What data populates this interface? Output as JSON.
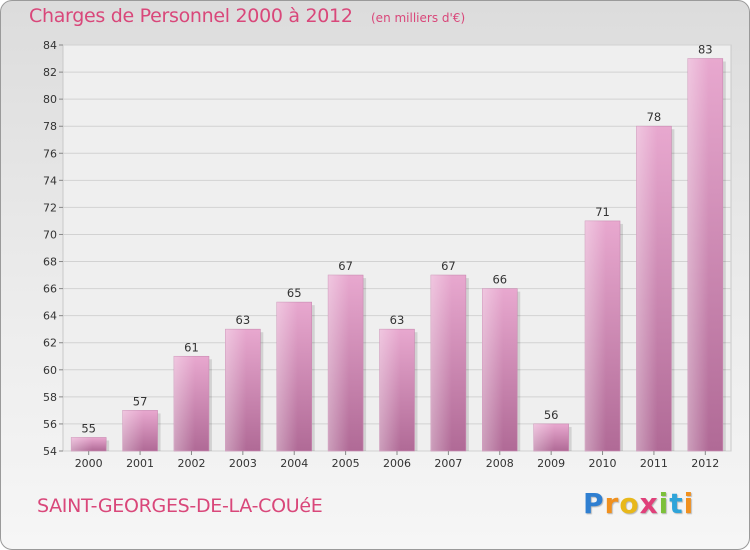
{
  "header": {
    "title": "Charges de Personnel 2000 à 2012",
    "subtitle": "(en milliers d'€)"
  },
  "footer": {
    "commune": "SAINT-GEORGES-DE-LA-COUéE",
    "logo_letters": [
      "P",
      "r",
      "o",
      "x",
      "i",
      "t",
      "i"
    ]
  },
  "colors": {
    "title": "#d9477a",
    "bar_top": "#e8a8cf",
    "bar_bottom": "#b06a96"
  },
  "chart_data": {
    "type": "bar",
    "title": "Charges de Personnel 2000 à 2012",
    "subtitle": "(en milliers d'€)",
    "xlabel": "",
    "ylabel": "",
    "categories": [
      "2000",
      "2001",
      "2002",
      "2003",
      "2004",
      "2005",
      "2006",
      "2007",
      "2008",
      "2009",
      "2010",
      "2011",
      "2012"
    ],
    "values": [
      55,
      57,
      61,
      63,
      65,
      67,
      63,
      67,
      66,
      56,
      71,
      78,
      83
    ],
    "ylim": [
      54,
      84
    ],
    "yticks": [
      54,
      56,
      58,
      60,
      62,
      64,
      66,
      68,
      70,
      72,
      74,
      76,
      78,
      80,
      82,
      84
    ],
    "grid": true,
    "legend": "none"
  }
}
